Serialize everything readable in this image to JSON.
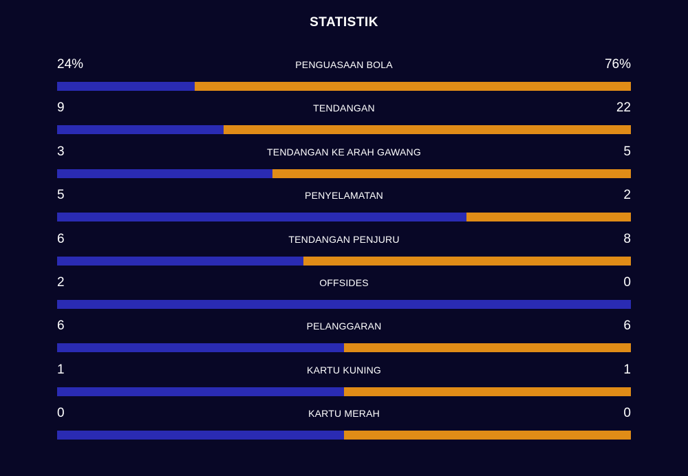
{
  "title": "STATISTIK",
  "colors": {
    "background": "#080726",
    "home": "#2a2bb3",
    "away": "#e08c17",
    "text": "#ffffff"
  },
  "stats": [
    {
      "label": "PENGUASAAN BOLA",
      "home": "24%",
      "away": "76%",
      "home_fraction": 0.24
    },
    {
      "label": "TENDANGAN",
      "home": "9",
      "away": "22",
      "home_fraction": 0.29
    },
    {
      "label": "TENDANGAN KE ARAH GAWANG",
      "home": "3",
      "away": "5",
      "home_fraction": 0.375
    },
    {
      "label": "PENYELAMATAN",
      "home": "5",
      "away": "2",
      "home_fraction": 0.714
    },
    {
      "label": "TENDANGAN PENJURU",
      "home": "6",
      "away": "8",
      "home_fraction": 0.429
    },
    {
      "label": "OFFSIDES",
      "home": "2",
      "away": "0",
      "home_fraction": 1.0
    },
    {
      "label": "PELANGGARAN",
      "home": "6",
      "away": "6",
      "home_fraction": 0.5
    },
    {
      "label": "KARTU KUNING",
      "home": "1",
      "away": "1",
      "home_fraction": 0.5
    },
    {
      "label": "KARTU MERAH",
      "home": "0",
      "away": "0",
      "home_fraction": 0.5
    }
  ]
}
